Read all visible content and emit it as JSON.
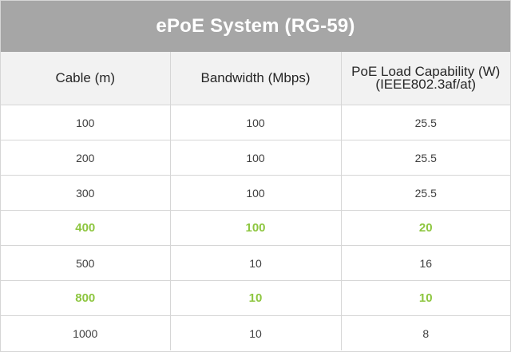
{
  "title": "ePoE System (RG-59)",
  "columns": {
    "cable": "Cable (m)",
    "bandwidth": "Bandwidth (Mbps)",
    "poe_line1": "PoE Load Capability (W)",
    "poe_line2": "(IEEE802.3af/at)"
  },
  "highlight_color": "#8dc63f",
  "rows": [
    {
      "cable": "100",
      "bandwidth": "100",
      "poe": "25.5",
      "highlight": false
    },
    {
      "cable": "200",
      "bandwidth": "100",
      "poe": "25.5",
      "highlight": false
    },
    {
      "cable": "300",
      "bandwidth": "100",
      "poe": "25.5",
      "highlight": false
    },
    {
      "cable": "400",
      "bandwidth": "100",
      "poe": "20",
      "highlight": true
    },
    {
      "cable": "500",
      "bandwidth": "10",
      "poe": "16",
      "highlight": false
    },
    {
      "cable": "800",
      "bandwidth": "10",
      "poe": "10",
      "highlight": true
    },
    {
      "cable": "1000",
      "bandwidth": "10",
      "poe": "8",
      "highlight": false
    }
  ]
}
